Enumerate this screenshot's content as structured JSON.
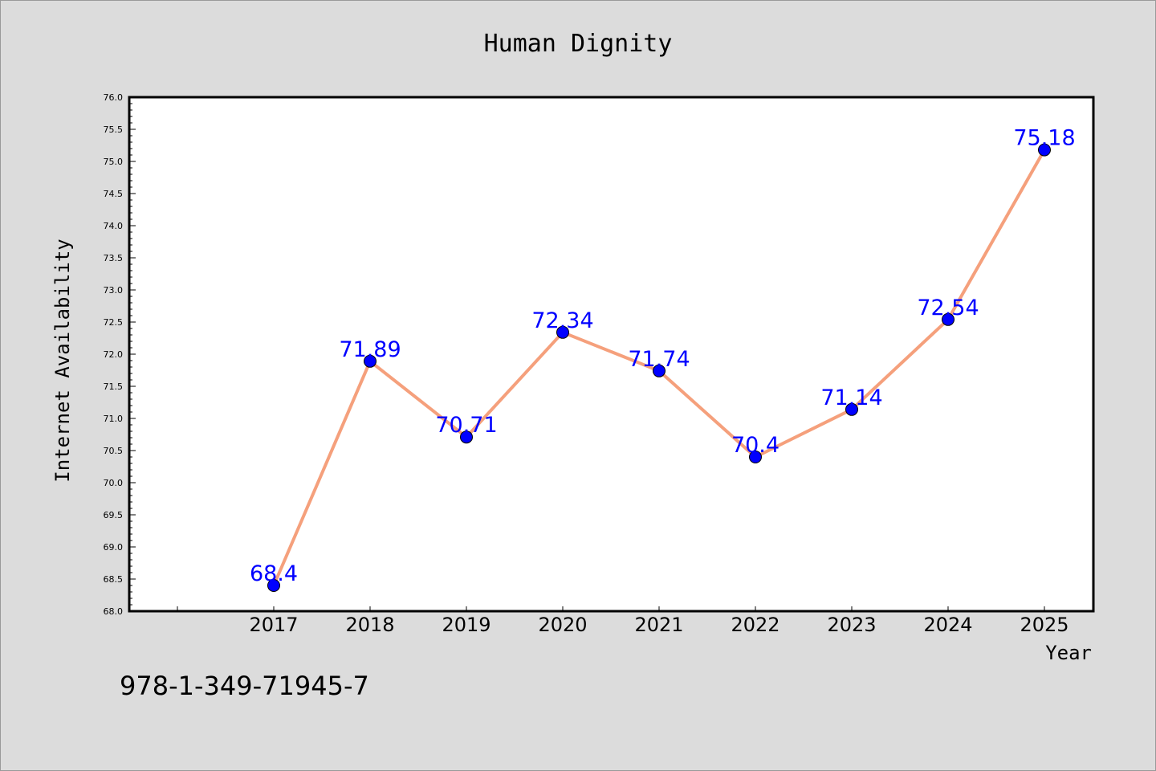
{
  "chart_data": {
    "type": "line",
    "title": "Human Dignity",
    "xlabel": "Year",
    "ylabel": "Internet Availability",
    "categories": [
      "2017",
      "2018",
      "2019",
      "2020",
      "2021",
      "2022",
      "2023",
      "2024",
      "2025"
    ],
    "values": [
      68.4,
      71.89,
      70.71,
      72.34,
      71.74,
      70.4,
      71.14,
      72.54,
      75.18
    ],
    "data_labels": [
      "68.4",
      "71.89",
      "70.71",
      "72.34",
      "71.74",
      "70.4",
      "71.14",
      "72.54",
      "75.18"
    ],
    "ylim": [
      68.0,
      76.0
    ],
    "yticks": [
      "68.0",
      "68.5",
      "69.0",
      "69.5",
      "70.0",
      "70.5",
      "71.0",
      "71.5",
      "72.0",
      "72.5",
      "73.0",
      "73.5",
      "74.0",
      "74.5",
      "75.0",
      "75.5",
      "76.0"
    ],
    "grid": false,
    "colors": {
      "line": "#f5a07c",
      "marker": "#0000ff",
      "label": "#0000ff",
      "background": "#dcdcdc",
      "plot_background": "#ffffff"
    }
  },
  "footer": {
    "code": "978-1-349-71945-7"
  }
}
